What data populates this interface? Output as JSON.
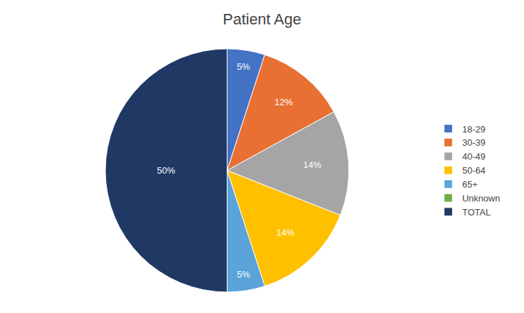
{
  "chart_data": {
    "type": "pie",
    "title": "Patient Age",
    "categories": [
      "18-29",
      "30-39",
      "40-49",
      "50-64",
      "65+",
      "Unknown",
      "TOTAL"
    ],
    "values": [
      5,
      12,
      14,
      14,
      5,
      0,
      50
    ],
    "value_labels": [
      "5%",
      "12%",
      "14%",
      "14%",
      "5%",
      null,
      "50%"
    ],
    "colors": [
      "#4472C4",
      "#E87033",
      "#A5A5A5",
      "#FFC000",
      "#5BA3D9",
      "#70AD47",
      "#1F3864"
    ],
    "data_labels": true,
    "legend": "right"
  }
}
